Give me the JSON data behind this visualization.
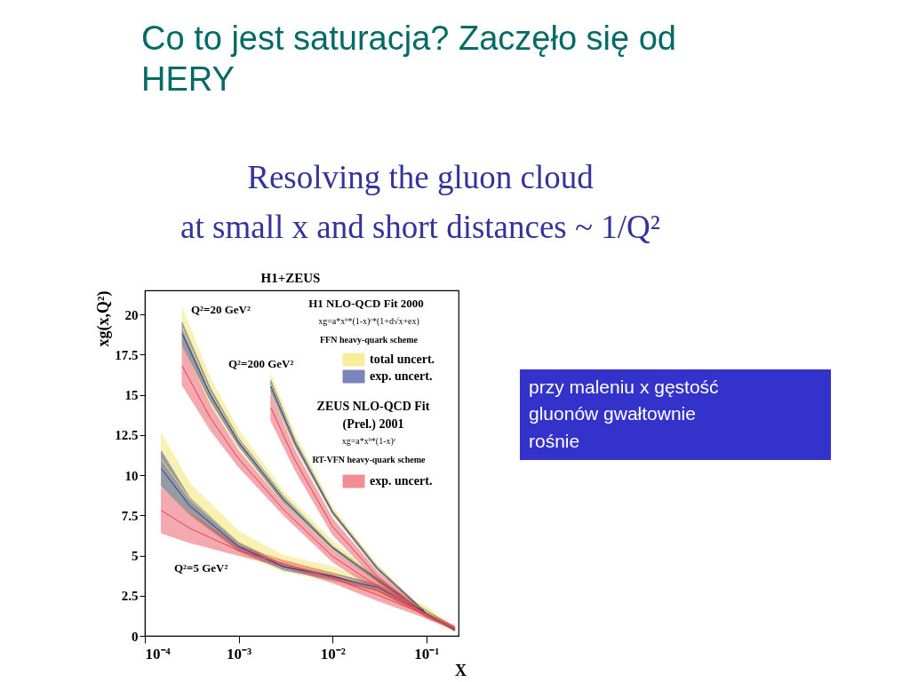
{
  "chart_data": {
    "type": "line",
    "title": "Co to jest saturacja? Zaczęło się od\nHERY",
    "subtitle": "Resolving the gluon cloud\nat small x and short distances ~ 1/Q²",
    "xlabel": "X",
    "ylabel": "xg(x,Q²)",
    "log": "x",
    "grid": false,
    "legend": "top right",
    "xlim": [
      0.0001,
      0.22
    ],
    "xticks": [
      {
        "value": 0.0001,
        "label": "10⁻⁴"
      },
      {
        "value": 0.001,
        "label": "10⁻³"
      },
      {
        "value": 0.01,
        "label": "10⁻²"
      },
      {
        "value": 0.1,
        "label": "10⁻¹"
      }
    ],
    "ylim": [
      0,
      21.5
    ],
    "yticks": [
      0,
      2.5,
      5,
      7.5,
      10,
      12.5,
      15,
      17.5,
      20
    ],
    "annotations": [
      "H1+ZEUS",
      "H1 NLO-QCD Fit 2000",
      "xg=a*xᵇ*(1-x)ᶜ*(1+d√x+ex)",
      "FFN heavy-quark scheme",
      "ZEUS NLO-QCD Fit\n(Prel.) 2001",
      "xg=a*xᵇ*(1-x)ᶜ",
      "RT-VFN heavy-quark scheme",
      "przy maleniu x gęstość\ngluonów gwałtownie\nrośnie",
      "Q²=5 GeV²",
      "Q²=20 GeV²",
      "Q²=200 GeV²"
    ],
    "series": [
      {
        "name": "total uncert.",
        "color": "#f2e25a",
        "x": [
          0.00015,
          0.0003,
          0.001,
          0.003,
          0.01,
          0.03,
          0.1,
          0.2
        ],
        "values": [
          11.0,
          8.5,
          5.85,
          4.5,
          3.85,
          2.95,
          1.5,
          0.4
        ],
        "lower": [
          9.3,
          7.5,
          5.2,
          4.0,
          3.4,
          2.6,
          1.2,
          0.3
        ],
        "upper": [
          12.6,
          9.5,
          6.5,
          5.0,
          4.3,
          3.3,
          1.8,
          0.5
        ]
      },
      {
        "name": "exp. uncert.",
        "color": "#24338f",
        "x": [
          0.00015,
          0.0003,
          0.001,
          0.003,
          0.01,
          0.03,
          0.1,
          0.2
        ],
        "values": [
          10.4,
          8.1,
          5.55,
          4.3,
          3.7,
          3.0,
          1.45,
          0.42
        ],
        "lower": [
          9.3,
          7.6,
          5.3,
          4.1,
          3.5,
          2.8,
          1.3,
          0.35
        ],
        "upper": [
          11.5,
          8.6,
          5.8,
          4.5,
          3.9,
          3.2,
          1.6,
          0.5
        ]
      },
      {
        "name": "exp. uncert.",
        "color": "#e8404f",
        "x": [
          0.00015,
          0.0003,
          0.001,
          0.003,
          0.01,
          0.03,
          0.1,
          0.2
        ],
        "values": [
          7.8,
          6.7,
          5.3,
          4.5,
          3.6,
          2.55,
          1.3,
          0.5
        ],
        "lower": [
          6.4,
          5.8,
          5.0,
          4.3,
          3.3,
          2.2,
          1.1,
          0.4
        ],
        "upper": [
          9.2,
          7.6,
          5.6,
          4.7,
          3.9,
          2.9,
          1.5,
          0.6
        ]
      },
      {
        "color": "#f2e25a",
        "x": [
          0.00025,
          0.0005,
          0.001,
          0.003,
          0.01,
          0.03,
          0.1,
          0.2
        ],
        "values": [
          19.2,
          15.15,
          12.2,
          8.6,
          5.6,
          3.5,
          1.45,
          0.4
        ],
        "lower": [
          18.0,
          14.3,
          11.6,
          8.2,
          5.3,
          3.3,
          1.3,
          0.3
        ],
        "upper": [
          20.4,
          16.0,
          12.8,
          9.0,
          5.9,
          3.7,
          1.6,
          0.5
        ]
      },
      {
        "color": "#24338f",
        "x": [
          0.00025,
          0.0005,
          0.001,
          0.003,
          0.01,
          0.03,
          0.1,
          0.2
        ],
        "values": [
          18.8,
          15.0,
          12.05,
          8.5,
          5.5,
          3.5,
          1.4,
          0.4
        ],
        "lower": [
          18.1,
          14.6,
          11.8,
          8.3,
          5.4,
          3.4,
          1.3,
          0.35
        ],
        "upper": [
          19.5,
          15.4,
          12.3,
          8.7,
          5.6,
          3.6,
          1.5,
          0.45
        ]
      },
      {
        "color": "#e8404f",
        "x": [
          0.00025,
          0.0005,
          0.001,
          0.003,
          0.01,
          0.03,
          0.1,
          0.2
        ],
        "values": [
          16.8,
          13.55,
          11.0,
          7.85,
          4.95,
          3.1,
          1.35,
          0.5
        ],
        "lower": [
          15.6,
          12.8,
          10.5,
          7.5,
          4.6,
          2.8,
          1.2,
          0.4
        ],
        "upper": [
          18.0,
          14.3,
          11.5,
          8.2,
          5.3,
          3.4,
          1.5,
          0.6
        ]
      },
      {
        "color": "#f2e25a",
        "x": [
          0.0022,
          0.004,
          0.01,
          0.03,
          0.1,
          0.2
        ],
        "values": [
          15.65,
          12.1,
          7.75,
          4.25,
          1.4,
          0.35
        ],
        "lower": [
          15.0,
          11.7,
          7.5,
          4.1,
          1.3,
          0.3
        ],
        "upper": [
          16.3,
          12.5,
          8.0,
          4.4,
          1.5,
          0.4
        ]
      },
      {
        "color": "#24338f",
        "x": [
          0.0022,
          0.004,
          0.01,
          0.03,
          0.1,
          0.2
        ],
        "values": [
          15.55,
          12.0,
          7.7,
          4.2,
          1.4,
          0.35
        ],
        "lower": [
          15.2,
          11.8,
          7.6,
          4.1,
          1.35,
          0.3
        ],
        "upper": [
          15.9,
          12.2,
          7.8,
          4.3,
          1.45,
          0.4
        ]
      },
      {
        "color": "#e8404f",
        "x": [
          0.0022,
          0.004,
          0.01,
          0.03,
          0.1,
          0.2
        ],
        "values": [
          14.2,
          10.9,
          6.8,
          3.7,
          1.25,
          0.42
        ],
        "lower": [
          13.4,
          10.3,
          6.3,
          3.4,
          1.1,
          0.35
        ],
        "upper": [
          15.0,
          11.5,
          7.3,
          4.0,
          1.4,
          0.5
        ]
      }
    ]
  }
}
